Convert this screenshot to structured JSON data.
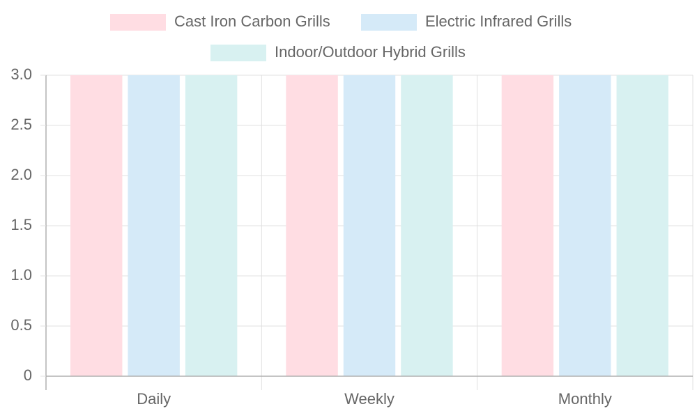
{
  "chart_data": {
    "type": "bar",
    "categories": [
      "Daily",
      "Weekly",
      "Monthly"
    ],
    "series": [
      {
        "name": "Cast Iron Carbon Grills",
        "values": [
          3.0,
          3.0,
          3.0
        ],
        "color": "#ffdde3"
      },
      {
        "name": "Electric Infrared Grills",
        "values": [
          3.0,
          3.0,
          3.0
        ],
        "color": "#d5eaf8"
      },
      {
        "name": "Indoor/Outdoor Hybrid Grills",
        "values": [
          3.0,
          3.0,
          3.0
        ],
        "color": "#d8f1f1"
      }
    ],
    "y_ticks": [
      "0",
      "0.5",
      "1.0",
      "1.5",
      "2.0",
      "2.5",
      "3.0"
    ],
    "ylim": [
      0,
      3.0
    ],
    "grid": true,
    "legend_position": "top-center",
    "colors": {
      "grid": "#e0e0e0",
      "axis": "#b0b0b0",
      "text": "#666666"
    }
  }
}
